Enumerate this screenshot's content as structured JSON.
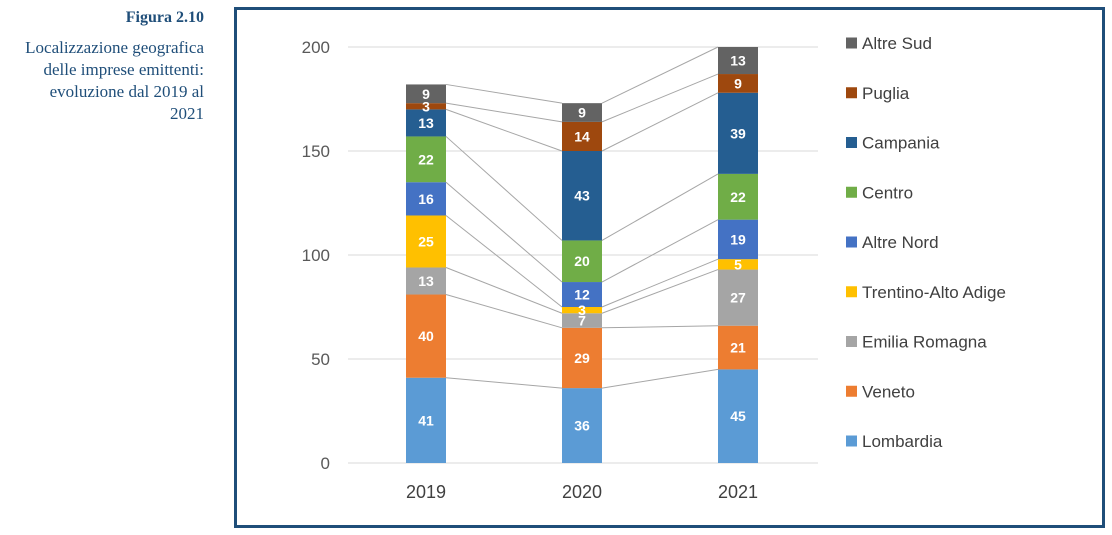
{
  "caption": {
    "figure_number": "Figura 2.10",
    "title_lines": [
      "Localizzazione geografica",
      "delle imprese emittenti:",
      "evoluzione dal 2019 al",
      "2021"
    ]
  },
  "chart_data": {
    "type": "bar",
    "stacked": true,
    "title": "",
    "xlabel": "",
    "ylabel": "",
    "categories": [
      "2019",
      "2020",
      "2021"
    ],
    "ylim": [
      0,
      200
    ],
    "yticks": [
      0,
      50,
      100,
      150,
      200
    ],
    "grid": true,
    "series_lines": true,
    "legend": {
      "position": "right",
      "order": "reverse"
    },
    "series": [
      {
        "name": "Lombardia",
        "color": "#5B9BD5",
        "values": [
          41,
          36,
          45
        ]
      },
      {
        "name": "Veneto",
        "color": "#ED7D31",
        "values": [
          40,
          29,
          21
        ]
      },
      {
        "name": "Emilia Romagna",
        "color": "#A5A5A5",
        "values": [
          13,
          7,
          27
        ]
      },
      {
        "name": "Trentino-Alto Adige",
        "color": "#FFC000",
        "values": [
          25,
          3,
          5
        ]
      },
      {
        "name": "Altre Nord",
        "color": "#4472C4",
        "values": [
          16,
          12,
          19
        ]
      },
      {
        "name": "Centro",
        "color": "#70AD47",
        "values": [
          22,
          20,
          22
        ]
      },
      {
        "name": "Campania",
        "color": "#255E91",
        "values": [
          13,
          43,
          39
        ]
      },
      {
        "name": "Puglia",
        "color": "#9E480E",
        "values": [
          3,
          14,
          9
        ]
      },
      {
        "name": "Altre Sud",
        "color": "#636363",
        "values": [
          9,
          9,
          13
        ]
      }
    ]
  }
}
